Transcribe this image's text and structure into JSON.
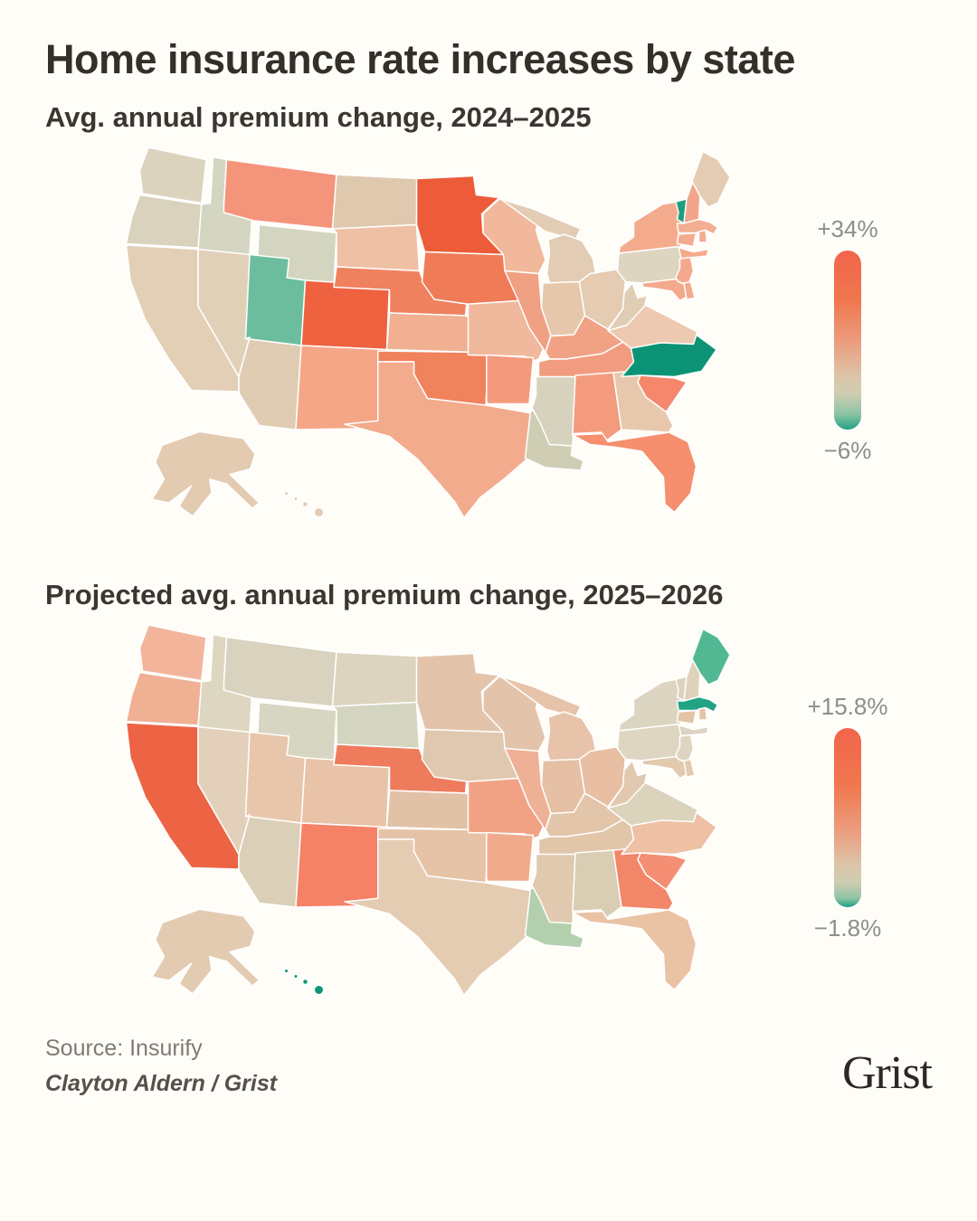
{
  "page": {
    "title": "Home insurance rate increases by state",
    "background_color": "#fffdf8",
    "title_color": "#33302a"
  },
  "maps": [
    {
      "subtitle": "Avg. annual premium change, 2024–2025",
      "legend": {
        "max_label": "+34%",
        "min_label": "−6%"
      }
    },
    {
      "subtitle": "Projected avg. annual premium change, 2025–2026",
      "legend": {
        "max_label": "+15.8%",
        "min_label": "−1.8%"
      }
    }
  ],
  "footer": {
    "source": "Source: Insurify",
    "credit": "Clayton Aldern / Grist",
    "logo_text": "Grist"
  },
  "chart_data": [
    {
      "type": "heatmap",
      "subtype": "us-state-choropleth",
      "title": "Avg. annual premium change, 2024–2025",
      "unit": "percent (values estimated from map colors)",
      "legend_position": "right",
      "scale": {
        "min": -6,
        "max": 34,
        "min_label": "−6%",
        "max_label": "+34%",
        "low_color": "#0c9376",
        "mid_color": "#ddd3be",
        "high_color": "#ec5c38"
      },
      "states": {
        "WA": {
          "value": 3,
          "color": "#dbd3be"
        },
        "OR": {
          "value": 3,
          "color": "#d9d2bc"
        },
        "CA": {
          "value": 4,
          "color": "#e2cfb6"
        },
        "NV": {
          "value": 4,
          "color": "#e1d0b8"
        },
        "ID": {
          "value": 1,
          "color": "#d5d6c1"
        },
        "MT": {
          "value": 12,
          "color": "#f4947a"
        },
        "WY": {
          "value": 1,
          "color": "#d4d5c0"
        },
        "UT": {
          "value": -3,
          "color": "#6cbd9e"
        },
        "CO": {
          "value": 28,
          "color": "#ee6240"
        },
        "AZ": {
          "value": 4,
          "color": "#e0ccb3"
        },
        "NM": {
          "value": 11,
          "color": "#f4a687"
        },
        "ND": {
          "value": 5,
          "color": "#dfc9ae"
        },
        "SD": {
          "value": 8,
          "color": "#f0c0a4"
        },
        "NE": {
          "value": 16,
          "color": "#f0815e"
        },
        "KS": {
          "value": 8,
          "color": "#f0b091"
        },
        "OK": {
          "value": 17,
          "color": "#f0825c"
        },
        "TX": {
          "value": 9,
          "color": "#f2ab8c"
        },
        "MN": {
          "value": 34,
          "color": "#ec5c38"
        },
        "IA": {
          "value": 19,
          "color": "#f07b57"
        },
        "MO": {
          "value": 8,
          "color": "#f0b89c"
        },
        "AR": {
          "value": 11,
          "color": "#f49a7c"
        },
        "LA": {
          "value": 0,
          "color": "#cfceb4"
        },
        "WI": {
          "value": 8,
          "color": "#f2b89c"
        },
        "IL": {
          "value": 10,
          "color": "#f0a183"
        },
        "MS": {
          "value": 1,
          "color": "#d7d2bd"
        },
        "MI": {
          "value": 5,
          "color": "#e2ccb4"
        },
        "IN": {
          "value": 5,
          "color": "#e7c7ab"
        },
        "OH": {
          "value": 5,
          "color": "#e4cbb1"
        },
        "KY": {
          "value": 10,
          "color": "#f2a284"
        },
        "TN": {
          "value": 10,
          "color": "#f19c80"
        },
        "AL": {
          "value": 11,
          "color": "#f49b7d"
        },
        "GA": {
          "value": 6,
          "color": "#e8c8ad"
        },
        "FL": {
          "value": 13,
          "color": "#f58f6e"
        },
        "SC": {
          "value": 14,
          "color": "#f4876c"
        },
        "NC": {
          "value": -6,
          "color": "#0c9376"
        },
        "VA": {
          "value": 7,
          "color": "#ecc9b0"
        },
        "WV": {
          "value": 5,
          "color": "#e0cdb4"
        },
        "MD": {
          "value": 9,
          "color": "#f4a98c"
        },
        "DE": {
          "value": 9,
          "color": "#f4a98c"
        },
        "PA": {
          "value": 4,
          "color": "#ddd5c0"
        },
        "NJ": {
          "value": 9,
          "color": "#f4a98c"
        },
        "NY": {
          "value": 10,
          "color": "#f4ab8d"
        },
        "CT": {
          "value": 9,
          "color": "#f3ab90"
        },
        "RI": {
          "value": 9,
          "color": "#f3ab90"
        },
        "MA": {
          "value": 9,
          "color": "#f2ad92"
        },
        "VT": {
          "value": -5,
          "color": "#1d9e7e"
        },
        "NH": {
          "value": 10,
          "color": "#f2a58a"
        },
        "ME": {
          "value": 5,
          "color": "#e4cbb3"
        },
        "AK": {
          "value": 5,
          "color": "#e3cbb1"
        },
        "HI": {
          "value": 4,
          "color": "#e3cbb1"
        }
      }
    },
    {
      "type": "heatmap",
      "subtype": "us-state-choropleth",
      "title": "Projected avg. annual premium change, 2025–2026",
      "unit": "percent (values estimated from map colors)",
      "legend_position": "right",
      "scale": {
        "min": -1.8,
        "max": 15.8,
        "min_label": "−1.8%",
        "max_label": "+15.8%",
        "low_color": "#0f9678",
        "mid_color": "#ddd3be",
        "high_color": "#ec6444"
      },
      "states": {
        "WA": {
          "value": 7,
          "color": "#f2b59c"
        },
        "OR": {
          "value": 7,
          "color": "#f0b094"
        },
        "CA": {
          "value": 15.8,
          "color": "#ec6444"
        },
        "NV": {
          "value": 3,
          "color": "#e3d0ba"
        },
        "ID": {
          "value": 2,
          "color": "#ddd6c0"
        },
        "MT": {
          "value": 2,
          "color": "#d8d2be"
        },
        "WY": {
          "value": 1,
          "color": "#d6d6c2"
        },
        "UT": {
          "value": 5,
          "color": "#e8c6ac"
        },
        "CO": {
          "value": 5,
          "color": "#e8c3a8"
        },
        "AZ": {
          "value": 2,
          "color": "#dccfb8"
        },
        "NM": {
          "value": 11,
          "color": "#f58266"
        },
        "ND": {
          "value": 2,
          "color": "#dcd4bf"
        },
        "SD": {
          "value": 1,
          "color": "#d4d5c0"
        },
        "NE": {
          "value": 12,
          "color": "#ee7c5c"
        },
        "KS": {
          "value": 4,
          "color": "#e2c2a6"
        },
        "OK": {
          "value": 4,
          "color": "#e6c3a6"
        },
        "TX": {
          "value": 3,
          "color": "#e4ccb2"
        },
        "MN": {
          "value": 4,
          "color": "#e3c4ab"
        },
        "IA": {
          "value": 3,
          "color": "#e0c8b0"
        },
        "MO": {
          "value": 8,
          "color": "#f2a284"
        },
        "AR": {
          "value": 6,
          "color": "#f0ab8c"
        },
        "LA": {
          "value": -0.8,
          "color": "#b3cfad"
        },
        "WI": {
          "value": 4,
          "color": "#e3c3aa"
        },
        "IL": {
          "value": 6,
          "color": "#eeb196"
        },
        "MS": {
          "value": 3,
          "color": "#e0c9ae"
        },
        "MI": {
          "value": 4,
          "color": "#e6c3a9"
        },
        "IN": {
          "value": 4,
          "color": "#e5c0a4"
        },
        "OH": {
          "value": 4,
          "color": "#e8bfa2"
        },
        "KY": {
          "value": 3,
          "color": "#e3c6aa"
        },
        "TN": {
          "value": 3,
          "color": "#e2c6aa"
        },
        "AL": {
          "value": 2,
          "color": "#d9cdb4"
        },
        "GA": {
          "value": 10,
          "color": "#f28668"
        },
        "FL": {
          "value": 5,
          "color": "#eac2a4"
        },
        "SC": {
          "value": 10,
          "color": "#f48f74"
        },
        "NC": {
          "value": 5,
          "color": "#eec0a4"
        },
        "VA": {
          "value": 2,
          "color": "#dcd3bd"
        },
        "WV": {
          "value": 3,
          "color": "#e0c9ae"
        },
        "MD": {
          "value": 3,
          "color": "#e3c9ad"
        },
        "DE": {
          "value": 3,
          "color": "#e3c9ad"
        },
        "PA": {
          "value": 2,
          "color": "#ded6c1"
        },
        "NJ": {
          "value": 2,
          "color": "#ded5c0"
        },
        "NY": {
          "value": 1.5,
          "color": "#dbd5c1"
        },
        "CT": {
          "value": 4,
          "color": "#e5c3a7"
        },
        "RI": {
          "value": 4,
          "color": "#e5c3a7"
        },
        "MA": {
          "value": -1.5,
          "color": "#21a384"
        },
        "VT": {
          "value": 2,
          "color": "#ddd2bc"
        },
        "NH": {
          "value": 2,
          "color": "#dfd2ba"
        },
        "ME": {
          "value": -1.2,
          "color": "#52b893"
        },
        "AK": {
          "value": 3,
          "color": "#e3cbb1"
        },
        "HI": {
          "value": -1.8,
          "color": "#0f9678"
        }
      }
    }
  ]
}
